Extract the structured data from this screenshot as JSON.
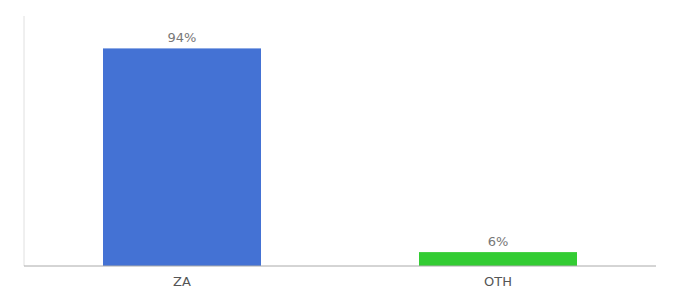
{
  "chart_data": {
    "type": "bar",
    "categories": [
      "ZA",
      "OTH"
    ],
    "values": [
      94,
      6
    ],
    "value_labels": [
      "94%",
      "6%"
    ],
    "colors": [
      "#4472d4",
      "#33cc33"
    ],
    "ylim": [
      0,
      108
    ],
    "data_labels": true,
    "tick_labels": "x"
  }
}
